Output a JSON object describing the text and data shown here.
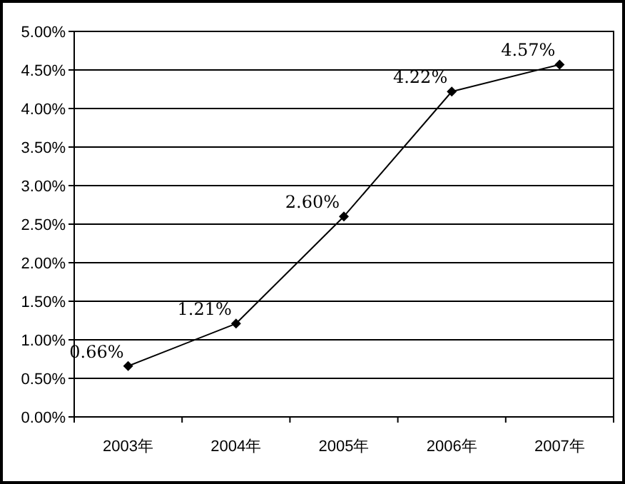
{
  "chart_data": {
    "type": "line",
    "categories": [
      "2003年",
      "2004年",
      "2005年",
      "2006年",
      "2007年"
    ],
    "series": [
      {
        "color": "#000000",
        "values": [
          0.66,
          1.21,
          2.6,
          4.22,
          4.57
        ],
        "value_labels": [
          "0.66%",
          "1.21%",
          "2.60%",
          "4.22%",
          "4.57%"
        ]
      }
    ],
    "ylim": [
      0,
      5
    ],
    "yticks": [
      {
        "value": 0,
        "label": "0.00%"
      },
      {
        "value": 0.5,
        "label": "0.50%"
      },
      {
        "value": 1,
        "label": "1.00%"
      },
      {
        "value": 1.5,
        "label": "1.50%"
      },
      {
        "value": 2,
        "label": "2.00%"
      },
      {
        "value": 2.5,
        "label": "2.50%"
      },
      {
        "value": 3,
        "label": "3.00%"
      },
      {
        "value": 3.5,
        "label": "3.50%"
      },
      {
        "value": 4,
        "label": "4.00%"
      },
      {
        "value": 4.5,
        "label": "4.50%"
      },
      {
        "value": 5,
        "label": "5.00%"
      }
    ],
    "grid": "y",
    "marker": "diamond",
    "line_style": "solid"
  }
}
